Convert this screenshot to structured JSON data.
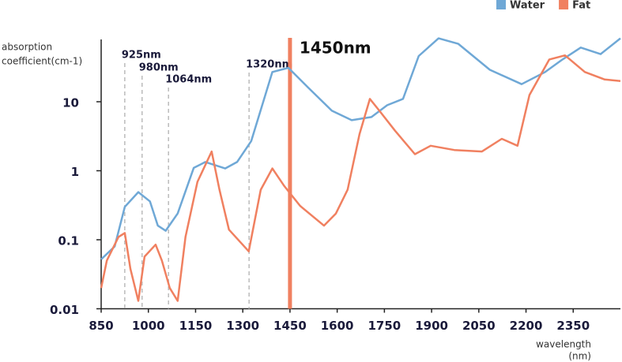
{
  "chart_data": {
    "type": "line",
    "y_label": [
      "absorption",
      "coefficient(cm-1)"
    ],
    "x_label": [
      "wavelength",
      "(nm)"
    ],
    "log_y": true,
    "xlim": [
      850,
      2500
    ],
    "ylim": [
      0.01,
      100
    ],
    "xticks": [
      850,
      1000,
      1150,
      1300,
      1450,
      1600,
      1750,
      1900,
      2050,
      2200,
      2350
    ],
    "yticks": [
      0.01,
      0.1,
      1,
      10
    ],
    "legend": "top-right",
    "annotations": [
      {
        "x": 925,
        "label": "925nm"
      },
      {
        "x": 980,
        "label": "980nm"
      },
      {
        "x": 1064,
        "label": "1064nm"
      },
      {
        "x": 1320,
        "label": "1320nm"
      }
    ],
    "highlight": {
      "x": 1450,
      "label": "1450nm",
      "color": "#f08060"
    },
    "series": [
      {
        "name": "Water",
        "color": "#6fa8d6",
        "x": [
          850,
          893,
          925,
          968,
          1005,
          1030,
          1055,
          1093,
          1144,
          1181,
          1244,
          1282,
          1327,
          1394,
          1445,
          1508,
          1583,
          1646,
          1709,
          1759,
          1809,
          1859,
          1922,
          1985,
          2085,
          2186,
          2261,
          2316,
          2374,
          2437,
          2500
        ],
        "values": [
          0.052,
          0.08,
          0.3,
          0.49,
          0.36,
          0.16,
          0.135,
          0.24,
          1.1,
          1.34,
          1.08,
          1.34,
          2.7,
          27,
          31,
          16,
          7.4,
          5.4,
          6.0,
          8.9,
          11,
          46,
          83,
          69,
          29,
          18,
          27,
          41,
          61,
          49,
          83
        ]
      },
      {
        "name": "Fat",
        "color": "#f08060",
        "x": [
          850,
          868,
          905,
          925,
          943,
          968,
          988,
          1023,
          1043,
          1068,
          1093,
          1118,
          1156,
          1201,
          1226,
          1256,
          1319,
          1357,
          1394,
          1432,
          1482,
          1558,
          1596,
          1633,
          1671,
          1704,
          1734,
          1784,
          1847,
          1897,
          1972,
          2060,
          2123,
          2173,
          2211,
          2274,
          2324,
          2387,
          2450,
          2500
        ],
        "values": [
          0.02,
          0.05,
          0.11,
          0.125,
          0.038,
          0.013,
          0.057,
          0.085,
          0.05,
          0.02,
          0.013,
          0.11,
          0.69,
          1.9,
          0.53,
          0.14,
          0.068,
          0.53,
          1.08,
          0.6,
          0.31,
          0.16,
          0.24,
          0.53,
          3.4,
          11,
          7.4,
          3.8,
          1.74,
          2.3,
          2.0,
          1.9,
          2.9,
          2.3,
          12.5,
          41,
          47,
          27,
          21,
          20
        ]
      }
    ]
  }
}
